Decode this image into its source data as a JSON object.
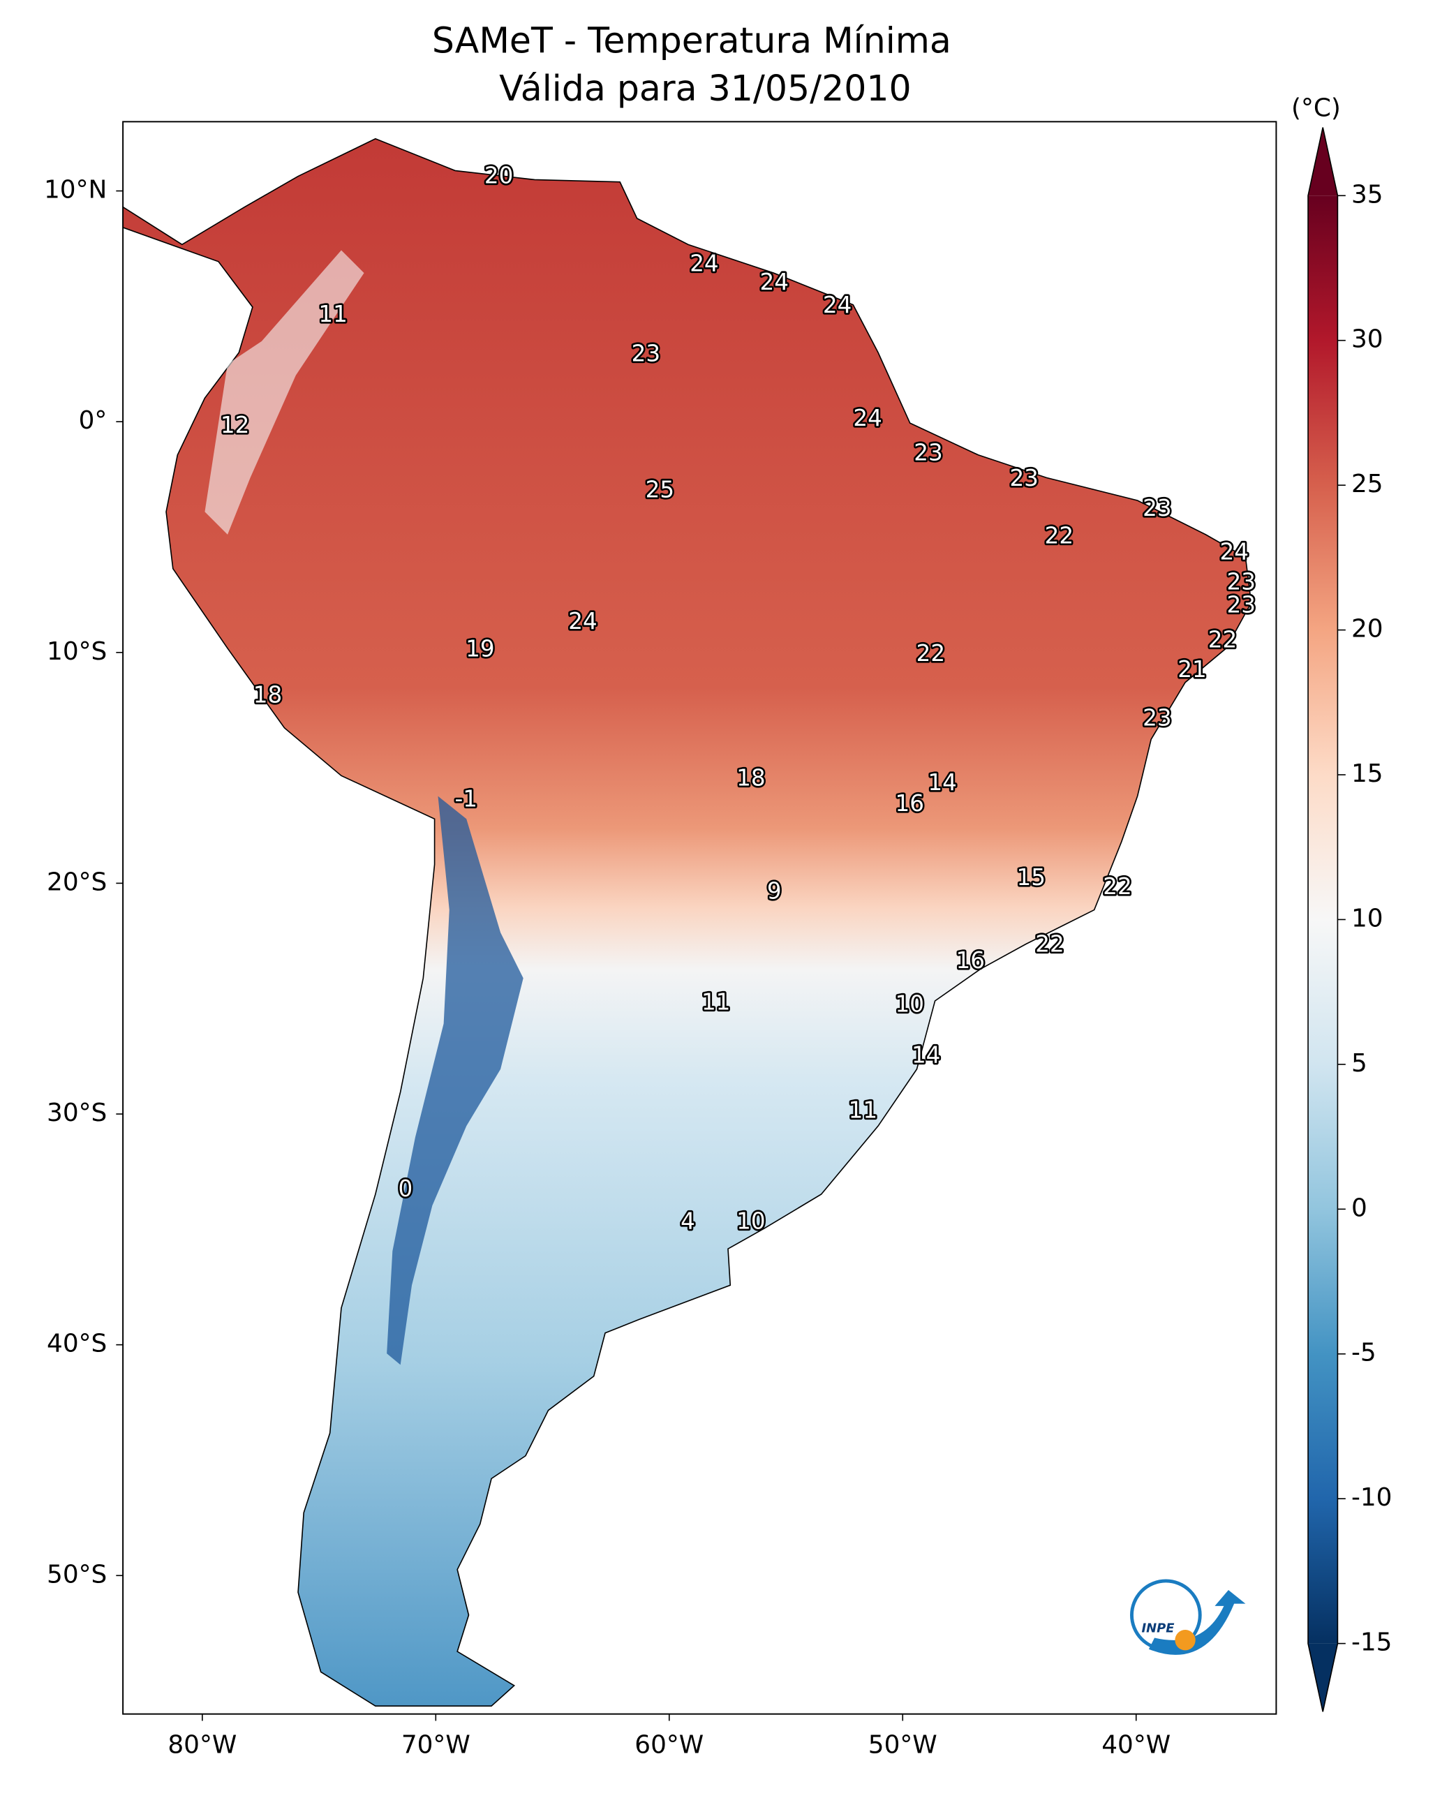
{
  "chart_data": {
    "type": "map",
    "title": "SAMeT - Temperatura Mínima",
    "subtitle": "Válida para 31/05/2010",
    "xlim": [
      -83.4,
      -34
    ],
    "ylim": [
      -56,
      13
    ],
    "xticks": [
      {
        "value": -80,
        "label": "80°W"
      },
      {
        "value": -70,
        "label": "70°W"
      },
      {
        "value": -60,
        "label": "60°W"
      },
      {
        "value": -50,
        "label": "50°W"
      },
      {
        "value": -40,
        "label": "40°W"
      }
    ],
    "yticks": [
      {
        "value": 10,
        "label": "10°N"
      },
      {
        "value": 0,
        "label": "0°"
      },
      {
        "value": -10,
        "label": "10°S"
      },
      {
        "value": -20,
        "label": "20°S"
      },
      {
        "value": -30,
        "label": "30°S"
      },
      {
        "value": -40,
        "label": "40°S"
      },
      {
        "value": -50,
        "label": "50°S"
      }
    ],
    "stations": {
      "x": [
        -67.3,
        -58.5,
        -55.5,
        -52.8,
        -74.4,
        -61.0,
        -78.6,
        -51.5,
        -48.9,
        -60.4,
        -44.8,
        -39.1,
        -43.3,
        -35.8,
        -35.5,
        -35.5,
        -63.7,
        -68.1,
        -36.3,
        -48.8,
        -37.6,
        -77.2,
        -39.1,
        -56.5,
        -48.3,
        -49.7,
        -68.7,
        -55.5,
        -44.5,
        -40.8,
        -43.7,
        -47.1,
        -58.0,
        -49.7,
        -49.0,
        -51.7,
        -71.3,
        -59.2,
        -56.5
      ],
      "y": [
        10.6,
        6.8,
        6.0,
        5.0,
        4.6,
        2.9,
        -0.2,
        0.1,
        -1.4,
        -3.0,
        -2.5,
        -3.8,
        -5.0,
        -5.7,
        -7.0,
        -8.0,
        -8.7,
        -9.9,
        -9.5,
        -10.1,
        -10.8,
        -11.9,
        -12.9,
        -15.5,
        -15.7,
        -16.6,
        -16.4,
        -20.4,
        -19.8,
        -20.2,
        -22.7,
        -23.4,
        -25.2,
        -25.3,
        -27.5,
        -29.9,
        -33.3,
        -34.7,
        -34.7
      ],
      "values": [
        20,
        24,
        24,
        24,
        11,
        23,
        12,
        24,
        23,
        25,
        23,
        23,
        22,
        24,
        23,
        23,
        24,
        19,
        22,
        22,
        21,
        18,
        23,
        18,
        14,
        16,
        -1,
        9,
        15,
        22,
        22,
        16,
        11,
        10,
        14,
        11,
        0,
        4,
        10
      ]
    },
    "colorbar": {
      "label": "(°C)",
      "lim": [
        -15,
        35
      ],
      "ticks": [
        -15,
        -10,
        -5,
        0,
        5,
        10,
        15,
        20,
        25,
        30,
        35
      ],
      "colors": [
        "#053061",
        "#2166ac",
        "#4393c3",
        "#92c5de",
        "#d1e5f0",
        "#f7f7f7",
        "#fddbc7",
        "#f4a582",
        "#d6604d",
        "#b2182b",
        "#67001f"
      ]
    },
    "logo": "INPE"
  }
}
